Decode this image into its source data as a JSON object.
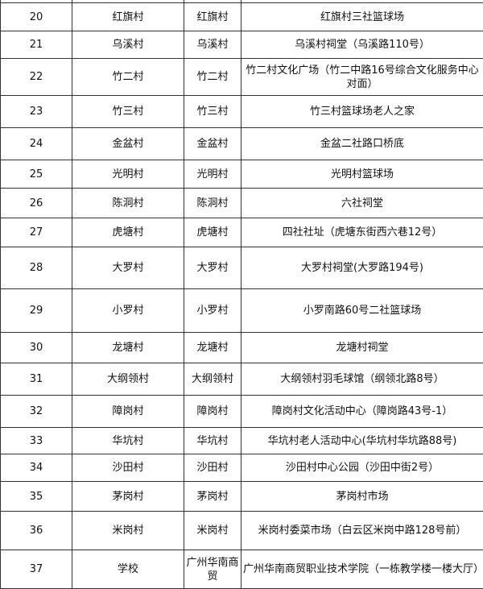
{
  "rows": [
    {
      "no": "20",
      "area": "红旗村",
      "unit": "红旗村",
      "site": "红旗村三社篮球场"
    },
    {
      "no": "21",
      "area": "乌溪村",
      "unit": "乌溪村",
      "site": "乌溪村祠堂（乌溪路110号）"
    },
    {
      "no": "22",
      "area": "竹二村",
      "unit": "竹二村",
      "site": "竹二村文化广场（竹二中路16号综合文化服务中心对面）"
    },
    {
      "no": "23",
      "area": "竹三村",
      "unit": "竹三村",
      "site": "竹三村篮球场老人之家"
    },
    {
      "no": "24",
      "area": "金盆村",
      "unit": "金盆村",
      "site": "金盆二社路口桥底"
    },
    {
      "no": "25",
      "area": "光明村",
      "unit": "光明村",
      "site": "光明村篮球场"
    },
    {
      "no": "26",
      "area": "陈洞村",
      "unit": "陈洞村",
      "site": "六社祠堂"
    },
    {
      "no": "27",
      "area": "虎塘村",
      "unit": "虎塘村",
      "site": "四社社址（虎塘东街西六巷12号）"
    },
    {
      "no": "28",
      "area": "大罗村",
      "unit": "大罗村",
      "site": "大罗村祠堂(大罗路194号)"
    },
    {
      "no": "29",
      "area": "小罗村",
      "unit": "小罗村",
      "site": "小罗南路60号二社篮球场"
    },
    {
      "no": "30",
      "area": "龙塘村",
      "unit": "龙塘村",
      "site": "龙塘村祠堂"
    },
    {
      "no": "31",
      "area": "大纲领村",
      "unit": "大纲领村",
      "site": "大纲领村羽毛球馆（纲领北路8号）"
    },
    {
      "no": "32",
      "area": "障岗村",
      "unit": "障岗村",
      "site": "障岗村文化活动中心（障岗路43号-1）"
    },
    {
      "no": "33",
      "area": "华坑村",
      "unit": "华坑村",
      "site": "华坑村老人活动中心(华坑村华坑路88号)"
    },
    {
      "no": "34",
      "area": "沙田村",
      "unit": "沙田村",
      "site": "沙田村中心公园（沙田中街2号）"
    },
    {
      "no": "35",
      "area": "茅岗村",
      "unit": "茅岗村",
      "site": "茅岗村市场"
    },
    {
      "no": "36",
      "area": "米岗村",
      "unit": "米岗村",
      "site": "米岗村委菜市场（白云区米岗中路128号前）"
    },
    {
      "no": "37",
      "area": "学校",
      "unit": "广州华南商贸",
      "site": "广州华南商贸职业技术学院（一栋教学楼一楼大厅）"
    }
  ]
}
